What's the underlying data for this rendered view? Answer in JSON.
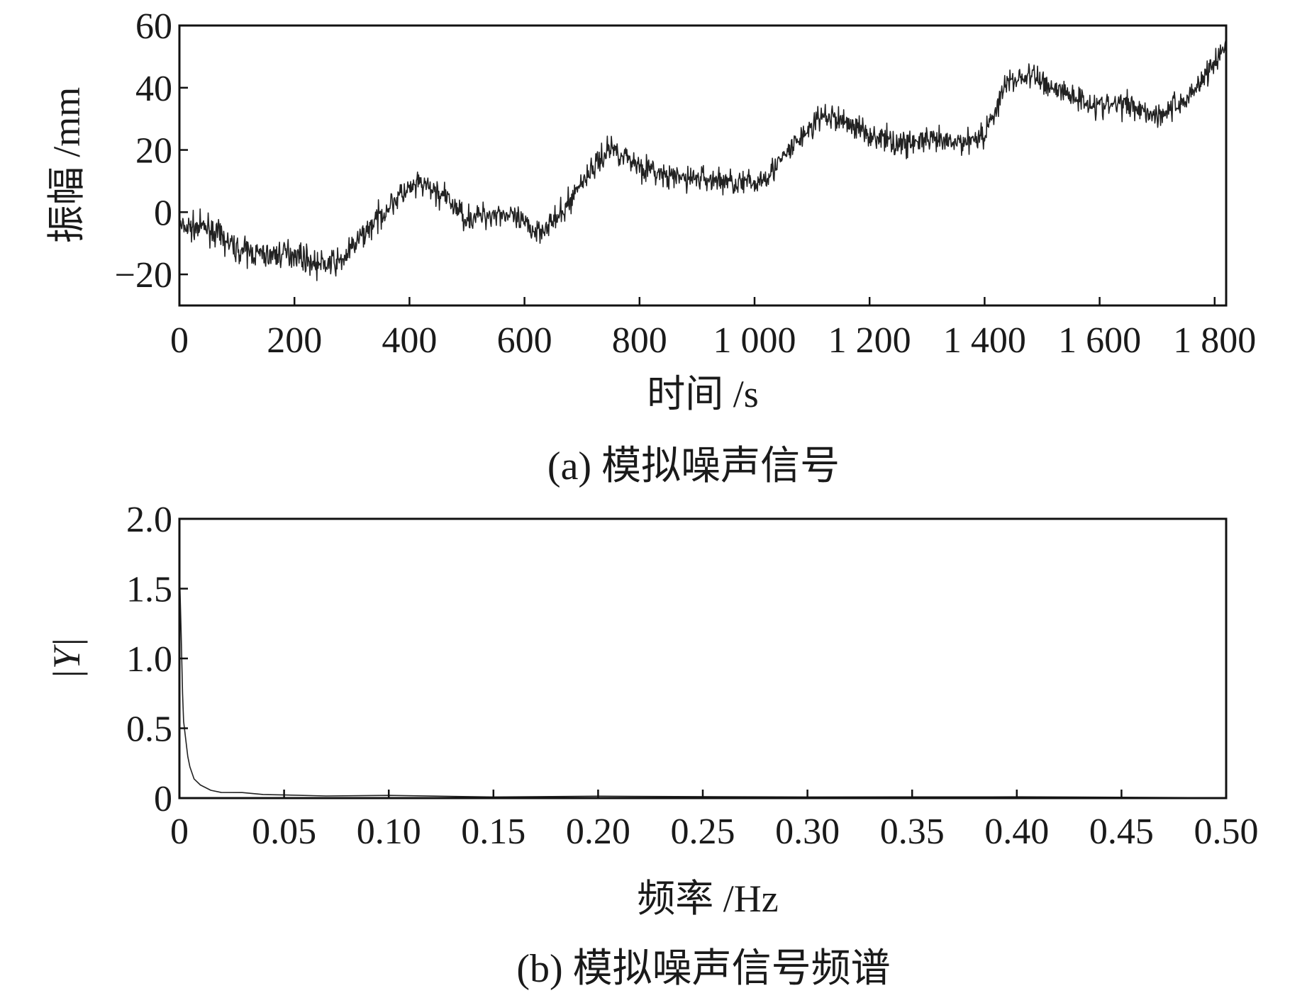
{
  "chart_data": [
    {
      "type": "line",
      "caption": "(a) 模拟噪声信号",
      "xlabel": "时间 /s",
      "ylabel": "振幅 /mm",
      "xlim": [
        0,
        1820
      ],
      "ylim": [
        -30,
        60
      ],
      "x_ticks": [
        0,
        200,
        400,
        600,
        800,
        1000,
        1200,
        1400,
        1600,
        1800
      ],
      "x_tick_labels": [
        "0",
        "200",
        "400",
        "600",
        "800",
        "1 000",
        "1 200",
        "1 400",
        "1 600",
        "1 800"
      ],
      "y_ticks": [
        -20,
        0,
        20,
        40,
        60
      ],
      "y_tick_labels": [
        "−20",
        "0",
        "20",
        "40",
        "60"
      ],
      "grid": false,
      "series": [
        {
          "x": [
            0,
            50,
            100,
            150,
            200,
            240,
            280,
            330,
            380,
            420,
            460,
            500,
            560,
            620,
            660,
            700,
            750,
            800,
            850,
            900,
            950,
            1000,
            1040,
            1080,
            1120,
            1160,
            1200,
            1250,
            1300,
            1350,
            1400,
            1440,
            1480,
            1520,
            1560,
            1600,
            1650,
            1700,
            1750,
            1820
          ],
          "values": [
            -5,
            -5,
            -12,
            -14,
            -13,
            -17,
            -16,
            -5,
            5,
            9,
            5,
            -2,
            0,
            -6,
            -2,
            10,
            21,
            15,
            11,
            11,
            10,
            9,
            15,
            24,
            31,
            29,
            25,
            22,
            23,
            22,
            25,
            42,
            44,
            40,
            37,
            34,
            35,
            31,
            36,
            53
          ]
        }
      ]
    },
    {
      "type": "line",
      "caption": "(b) 模拟噪声信号频谱",
      "xlabel": "频率 /Hz",
      "ylabel": "|Y|",
      "xlim": [
        0,
        0.5
      ],
      "ylim": [
        0,
        2.0
      ],
      "x_ticks": [
        0,
        0.05,
        0.1,
        0.15,
        0.2,
        0.25,
        0.3,
        0.35,
        0.4,
        0.45,
        0.5
      ],
      "x_tick_labels": [
        "0",
        "0.05",
        "0.10",
        "0.15",
        "0.20",
        "0.25",
        "0.30",
        "0.35",
        "0.40",
        "0.45",
        "0.50"
      ],
      "y_ticks": [
        0,
        0.5,
        1.0,
        1.5,
        2.0
      ],
      "y_tick_labels": [
        "0",
        "0.5",
        "1.0",
        "1.5",
        "2.0"
      ],
      "grid": false,
      "series": [
        {
          "x": [
            0,
            0.0008,
            0.0015,
            0.002,
            0.003,
            0.004,
            0.005,
            0.007,
            0.01,
            0.015,
            0.02,
            0.03,
            0.04,
            0.05,
            0.07,
            0.1,
            0.15,
            0.2,
            0.3,
            0.4,
            0.5
          ],
          "values": [
            1.65,
            1.2,
            0.75,
            0.55,
            0.42,
            0.3,
            0.22,
            0.14,
            0.09,
            0.06,
            0.045,
            0.035,
            0.03,
            0.025,
            0.02,
            0.015,
            0.012,
            0.01,
            0.008,
            0.007,
            0.006
          ]
        }
      ]
    }
  ]
}
